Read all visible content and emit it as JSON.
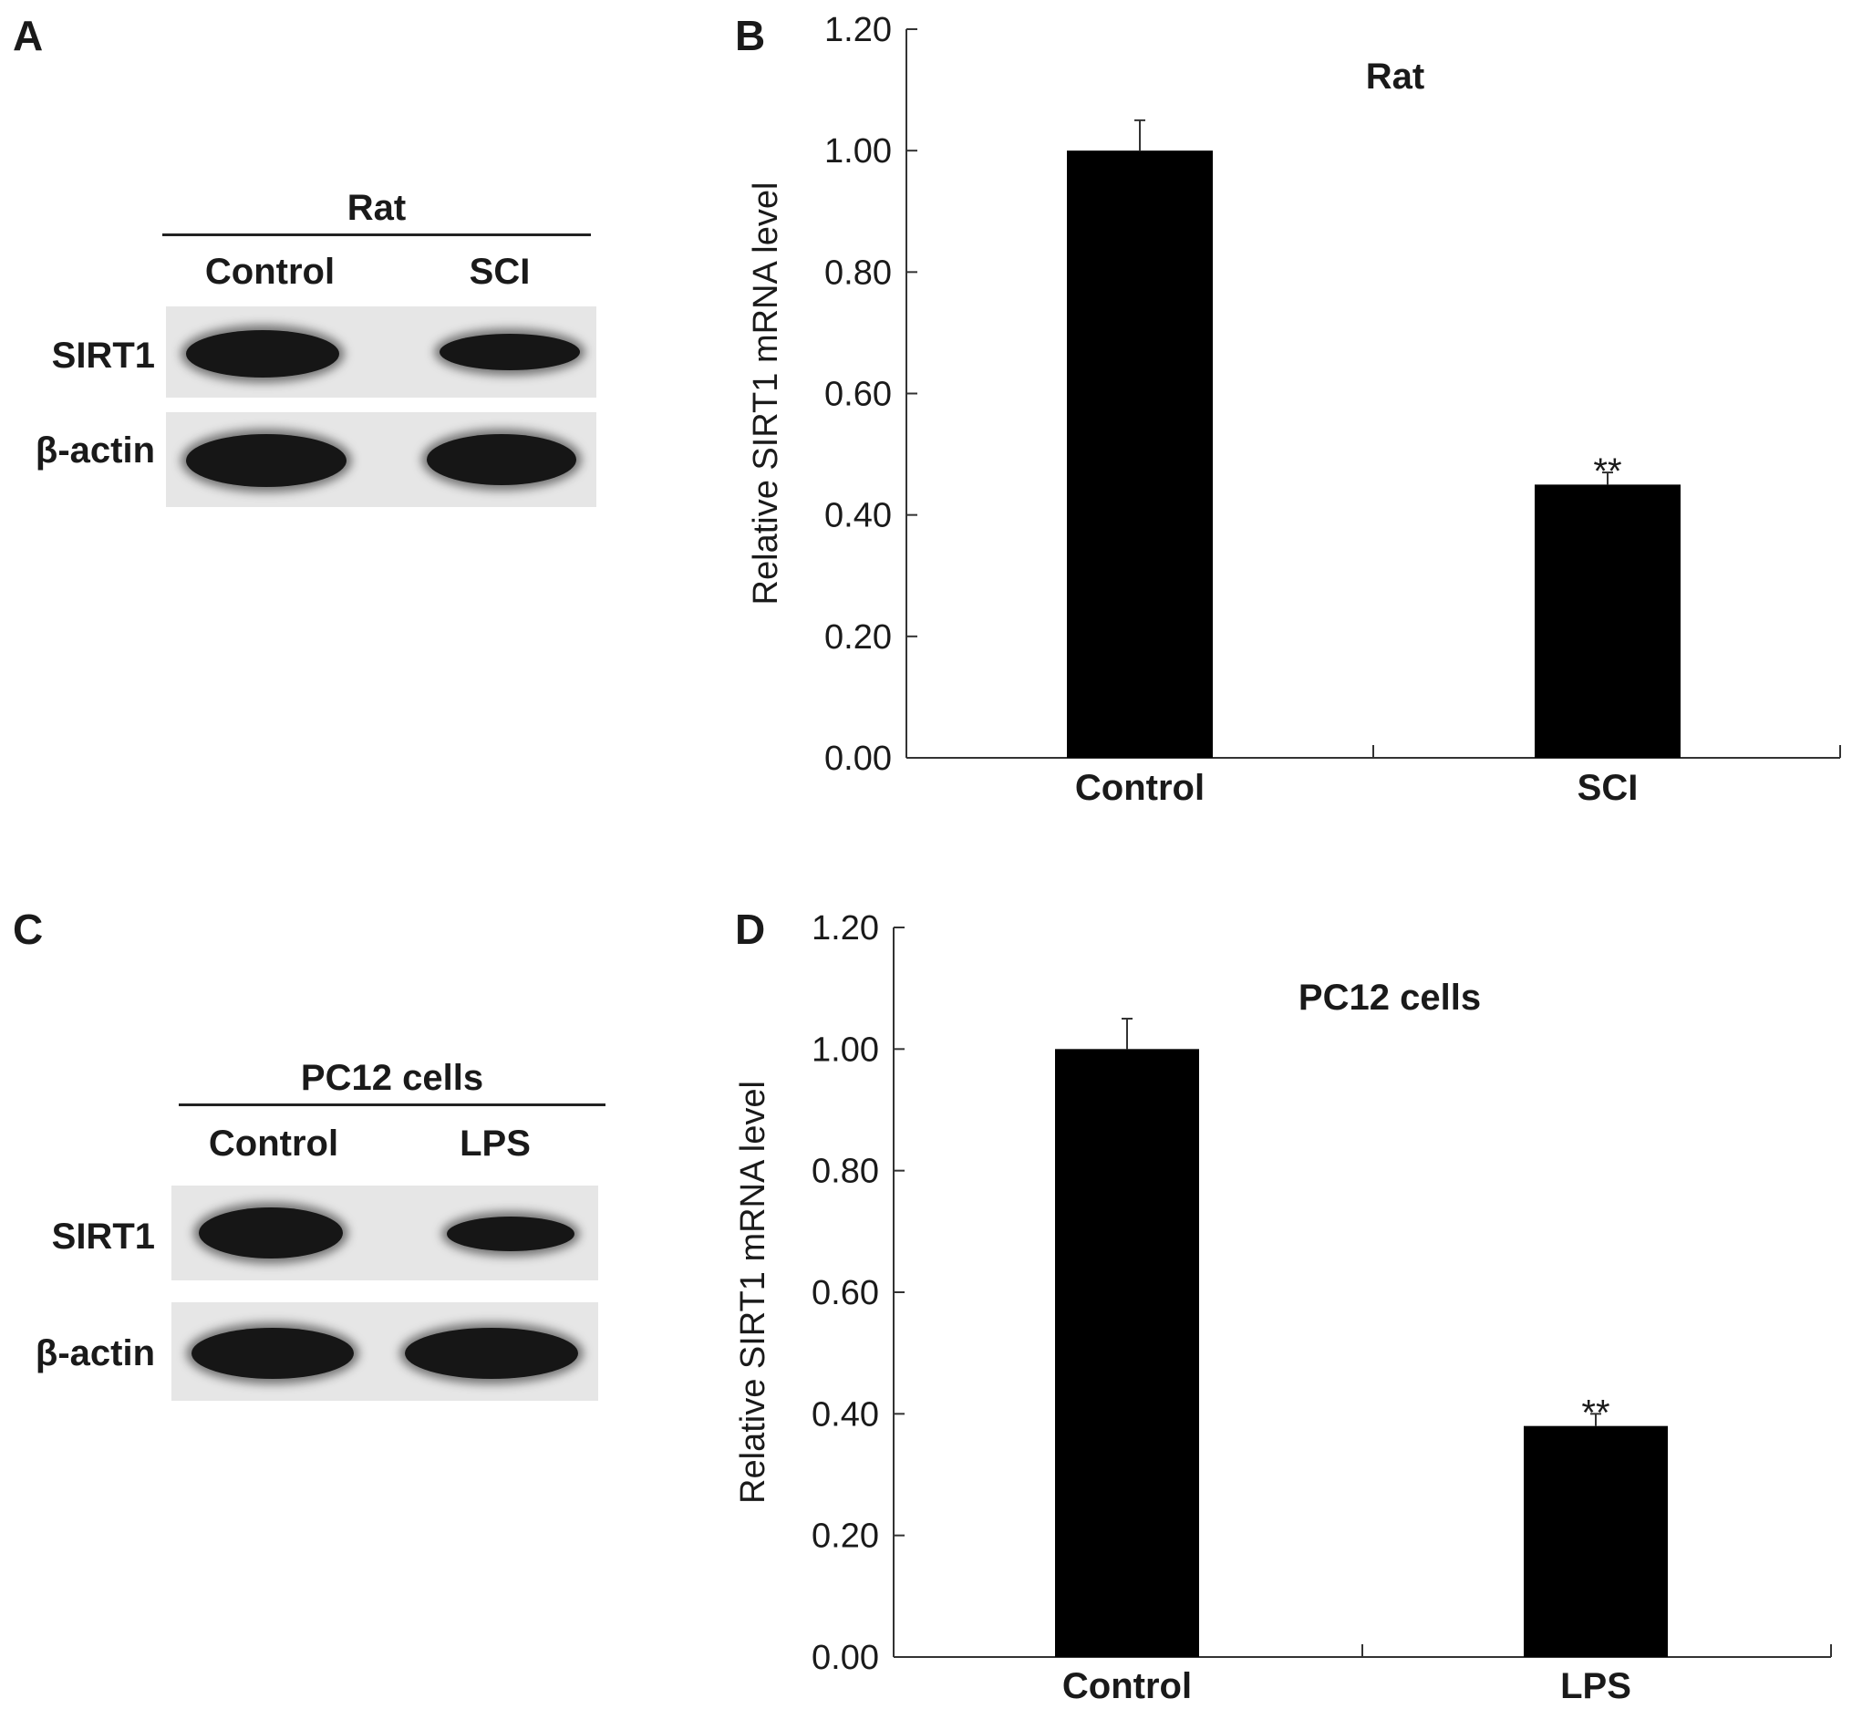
{
  "panels": {
    "A": {
      "letter": "A",
      "header": "Rat",
      "lanes": [
        "Control",
        "SCI"
      ],
      "rows": [
        "SIRT1",
        "β-actin"
      ]
    },
    "B": {
      "letter": "B"
    },
    "C": {
      "letter": "C",
      "header": "PC12 cells",
      "lanes": [
        "Control",
        "LPS"
      ],
      "rows": [
        "SIRT1",
        "β-actin"
      ]
    },
    "D": {
      "letter": "D"
    }
  },
  "chart_data": [
    {
      "type": "bar",
      "title": "Rat",
      "ylabel": "Relative SIRT1 mRNA level",
      "xlabel": "",
      "categories": [
        "Control",
        "SCI"
      ],
      "values": [
        1.0,
        0.45
      ],
      "error": [
        0.05,
        0.02
      ],
      "significance": [
        "",
        "**"
      ],
      "ylim": [
        0,
        1.2
      ],
      "yticks": [
        "0.00",
        "0.20",
        "0.40",
        "0.60",
        "0.80",
        "1.00",
        "1.20"
      ],
      "bar_color": "#000000",
      "grid": false
    },
    {
      "type": "bar",
      "title": "PC12 cells",
      "ylabel": "Relative SIRT1 mRNA level",
      "xlabel": "",
      "categories": [
        "Control",
        "LPS"
      ],
      "values": [
        1.0,
        0.38
      ],
      "error": [
        0.05,
        0.02
      ],
      "significance": [
        "",
        "**"
      ],
      "ylim": [
        0,
        1.2
      ],
      "yticks": [
        "0.00",
        "0.20",
        "0.40",
        "0.60",
        "0.80",
        "1.00",
        "1.20"
      ],
      "bar_color": "#000000",
      "grid": false
    }
  ]
}
